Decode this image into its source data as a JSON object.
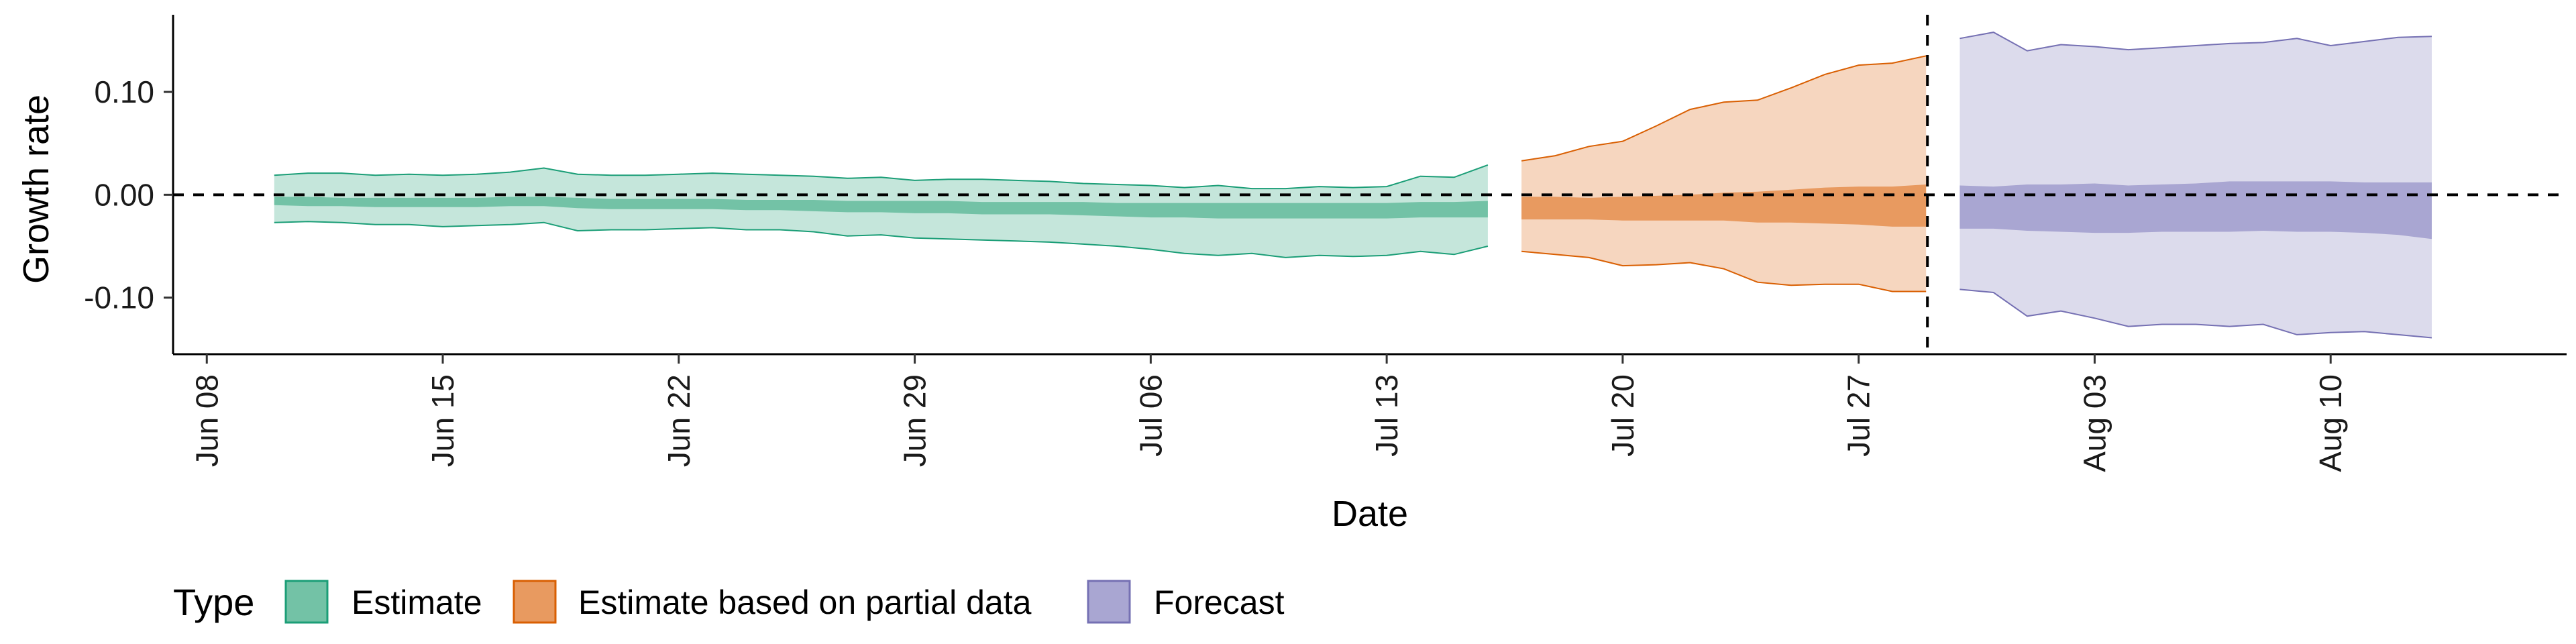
{
  "chart_data": {
    "type": "area",
    "xlabel": "Date",
    "ylabel": "Growth rate",
    "x_ticks": [
      "Jun 08",
      "Jun 15",
      "Jun 22",
      "Jun 29",
      "Jul 06",
      "Jul 13",
      "Jul 20",
      "Jul 27",
      "Aug 03",
      "Aug 10"
    ],
    "y_ticks": [
      "0.10",
      "0.00",
      "-0.10"
    ],
    "xlim": [
      "2020-06-07",
      "2020-08-17"
    ],
    "ylim": [
      -0.155,
      0.175
    ],
    "reference_lines": {
      "horizontal_y": 0.0,
      "vertical_date": "2020-07-29",
      "style": "dashed"
    },
    "legend": {
      "title": "Type",
      "position": "bottom-left",
      "items": [
        "Estimate",
        "Estimate based on partial data",
        "Forecast"
      ]
    },
    "colors": {
      "Estimate": {
        "line": "#1b9e77",
        "outer": "#c5e6db",
        "inner": "#73c2a6"
      },
      "Estimate based on partial data": {
        "line": "#d95f02",
        "outer": "#f6d6bf",
        "inner": "#e89a60"
      },
      "Forecast": {
        "line": "#7570b3",
        "outer": "#dcdbec",
        "inner": "#a9a6d2"
      }
    },
    "series": [
      {
        "name": "Estimate",
        "dates": [
          "2020-06-10",
          "2020-06-11",
          "2020-06-12",
          "2020-06-13",
          "2020-06-14",
          "2020-06-15",
          "2020-06-16",
          "2020-06-17",
          "2020-06-18",
          "2020-06-19",
          "2020-06-20",
          "2020-06-21",
          "2020-06-22",
          "2020-06-23",
          "2020-06-24",
          "2020-06-25",
          "2020-06-26",
          "2020-06-27",
          "2020-06-28",
          "2020-06-29",
          "2020-06-30",
          "2020-07-01",
          "2020-07-02",
          "2020-07-03",
          "2020-07-04",
          "2020-07-05",
          "2020-07-06",
          "2020-07-07",
          "2020-07-08",
          "2020-07-09",
          "2020-07-10",
          "2020-07-11",
          "2020-07-12",
          "2020-07-13",
          "2020-07-14",
          "2020-07-15",
          "2020-07-16"
        ],
        "upper90": [
          0.019,
          0.021,
          0.021,
          0.019,
          0.02,
          0.019,
          0.02,
          0.022,
          0.026,
          0.02,
          0.019,
          0.019,
          0.02,
          0.021,
          0.02,
          0.019,
          0.018,
          0.016,
          0.017,
          0.014,
          0.015,
          0.015,
          0.014,
          0.013,
          0.011,
          0.01,
          0.009,
          0.007,
          0.009,
          0.006,
          0.006,
          0.008,
          0.007,
          0.008,
          0.018,
          0.017,
          0.029
        ],
        "lower90": [
          -0.027,
          -0.026,
          -0.027,
          -0.029,
          -0.029,
          -0.031,
          -0.03,
          -0.029,
          -0.027,
          -0.035,
          -0.034,
          -0.034,
          -0.033,
          -0.032,
          -0.034,
          -0.034,
          -0.036,
          -0.04,
          -0.039,
          -0.042,
          -0.043,
          -0.044,
          -0.045,
          -0.046,
          -0.048,
          -0.05,
          -0.053,
          -0.057,
          -0.059,
          -0.057,
          -0.061,
          -0.059,
          -0.06,
          -0.059,
          -0.055,
          -0.058,
          -0.05
        ],
        "upper50": [
          -0.002,
          -0.002,
          -0.003,
          -0.003,
          -0.003,
          -0.003,
          -0.003,
          -0.002,
          -0.002,
          -0.003,
          -0.004,
          -0.004,
          -0.004,
          -0.004,
          -0.005,
          -0.005,
          -0.005,
          -0.006,
          -0.006,
          -0.006,
          -0.006,
          -0.007,
          -0.007,
          -0.007,
          -0.007,
          -0.008,
          -0.008,
          -0.008,
          -0.008,
          -0.008,
          -0.008,
          -0.008,
          -0.008,
          -0.008,
          -0.007,
          -0.007,
          -0.006
        ],
        "lower50": [
          -0.01,
          -0.011,
          -0.011,
          -0.012,
          -0.012,
          -0.012,
          -0.012,
          -0.011,
          -0.011,
          -0.013,
          -0.014,
          -0.014,
          -0.014,
          -0.014,
          -0.015,
          -0.015,
          -0.016,
          -0.017,
          -0.017,
          -0.018,
          -0.018,
          -0.019,
          -0.019,
          -0.019,
          -0.02,
          -0.021,
          -0.022,
          -0.022,
          -0.023,
          -0.023,
          -0.023,
          -0.023,
          -0.023,
          -0.023,
          -0.022,
          -0.022,
          -0.022
        ]
      },
      {
        "name": "Estimate based on partial data",
        "dates": [
          "2020-07-17",
          "2020-07-18",
          "2020-07-19",
          "2020-07-20",
          "2020-07-21",
          "2020-07-22",
          "2020-07-23",
          "2020-07-24",
          "2020-07-25",
          "2020-07-26",
          "2020-07-27",
          "2020-07-28",
          "2020-07-29"
        ],
        "upper90": [
          0.033,
          0.038,
          0.047,
          0.052,
          0.067,
          0.083,
          0.09,
          0.092,
          0.104,
          0.117,
          0.126,
          0.128,
          0.135
        ],
        "lower90": [
          -0.055,
          -0.058,
          -0.061,
          -0.069,
          -0.068,
          -0.066,
          -0.072,
          -0.085,
          -0.088,
          -0.087,
          -0.087,
          -0.094,
          -0.094
        ],
        "upper50": [
          -0.002,
          -0.002,
          -0.003,
          -0.002,
          -0.001,
          0.0,
          0.002,
          0.003,
          0.005,
          0.007,
          0.008,
          0.008,
          0.01
        ],
        "lower50": [
          -0.024,
          -0.024,
          -0.024,
          -0.025,
          -0.025,
          -0.025,
          -0.025,
          -0.027,
          -0.027,
          -0.028,
          -0.029,
          -0.031,
          -0.031
        ]
      },
      {
        "name": "Forecast",
        "dates": [
          "2020-07-30",
          "2020-07-31",
          "2020-08-01",
          "2020-08-02",
          "2020-08-03",
          "2020-08-04",
          "2020-08-05",
          "2020-08-06",
          "2020-08-07",
          "2020-08-08",
          "2020-08-09",
          "2020-08-10",
          "2020-08-11",
          "2020-08-12",
          "2020-08-13"
        ],
        "upper90": [
          0.152,
          0.158,
          0.14,
          0.146,
          0.144,
          0.141,
          0.143,
          0.145,
          0.147,
          0.148,
          0.152,
          0.145,
          0.149,
          0.153,
          0.154
        ],
        "lower90": [
          -0.092,
          -0.095,
          -0.118,
          -0.113,
          -0.12,
          -0.128,
          -0.126,
          -0.126,
          -0.128,
          -0.126,
          -0.136,
          -0.134,
          -0.133,
          -0.136,
          -0.139
        ],
        "upper50": [
          0.009,
          0.008,
          0.01,
          0.01,
          0.011,
          0.009,
          0.01,
          0.011,
          0.013,
          0.013,
          0.013,
          0.013,
          0.012,
          0.012,
          0.012
        ],
        "lower50": [
          -0.033,
          -0.033,
          -0.035,
          -0.036,
          -0.037,
          -0.037,
          -0.036,
          -0.036,
          -0.036,
          -0.035,
          -0.036,
          -0.036,
          -0.037,
          -0.039,
          -0.043
        ]
      }
    ]
  }
}
